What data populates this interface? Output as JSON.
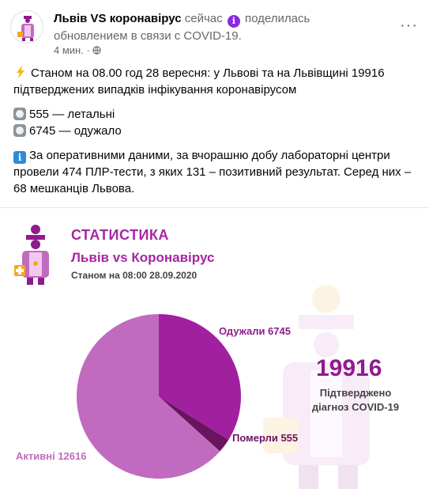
{
  "post": {
    "page_name": "Львів VS коронавірус",
    "time_word": "сейчас",
    "shared_text": "поделилась обновлением в связи с COVID-19.",
    "timestamp": "4 мин.",
    "more_label": "···",
    "icons": {
      "info": "i",
      "privacy": "globe-icon",
      "more": "more-options-icon"
    }
  },
  "body": {
    "p1": "Станом на 08.00 год 28 вересня: у Львові та на Львівщині 19916 підтверджених випадків інфікування коронавірусом",
    "line_lethal": "555 — летальні",
    "line_recovered": "6745 — одужало",
    "p3": "За оперативними даними, за вчорашню добу лабораторні центри провели 474 ПЛР-тести, з яких 131 – позитивний результат. Серед них – 68 мешканців Львова.",
    "info_glyph": "i"
  },
  "infographic": {
    "title": "СТАТИСТИКА",
    "subtitle": "Львів vs Коронавірус",
    "date_line": "Станом на 08:00 28.09.2020",
    "total": "19916",
    "total_caption_1": "Підтверджено",
    "total_caption_2": "діагноз COVID-19"
  },
  "chart_data": {
    "type": "pie",
    "title": "",
    "slices": [
      {
        "label": "Одужали 6745",
        "value": 6745,
        "color": "#a020a0"
      },
      {
        "label": "Померли 555",
        "value": 555,
        "color": "#6a145f"
      },
      {
        "label": "Активні 12616",
        "value": 12616,
        "color": "#c06bc0"
      }
    ]
  },
  "colors": {
    "accent": "#a626a4",
    "text_muted": "#65676b",
    "info_badge": "#8a2be2"
  }
}
